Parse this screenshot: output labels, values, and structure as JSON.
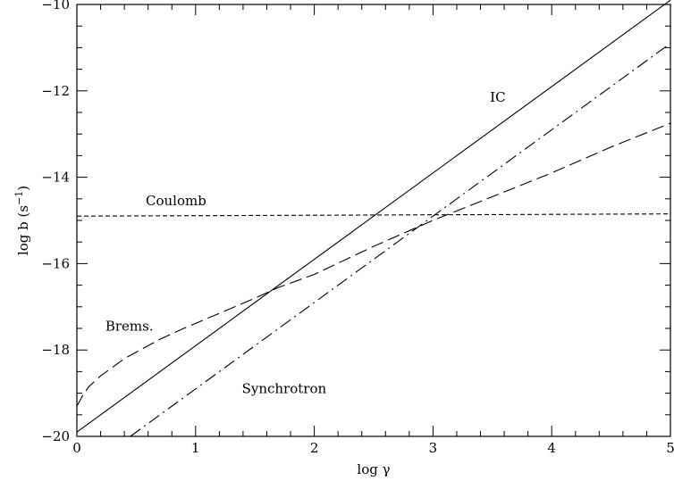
{
  "chart_data": {
    "type": "line",
    "xlabel": "log γ",
    "ylabel_main": "log b (s",
    "ylabel_sup": "−1",
    "ylabel_close": ")",
    "xlim": [
      0,
      5
    ],
    "ylim": [
      -20,
      -10
    ],
    "x_ticks": [
      {
        "value": 0,
        "label": "0"
      },
      {
        "value": 1,
        "label": "1"
      },
      {
        "value": 2,
        "label": "2"
      },
      {
        "value": 3,
        "label": "3"
      },
      {
        "value": 4,
        "label": "4"
      },
      {
        "value": 5,
        "label": "5"
      }
    ],
    "y_ticks": [
      {
        "value": -10,
        "label": "−10"
      },
      {
        "value": -12,
        "label": "−12"
      },
      {
        "value": -14,
        "label": "−14"
      },
      {
        "value": -16,
        "label": "−16"
      },
      {
        "value": -18,
        "label": "−18"
      },
      {
        "value": -20,
        "label": "−20"
      }
    ],
    "series": [
      {
        "name": "IC",
        "dash": "solid",
        "x": [
          0,
          5
        ],
        "y": [
          -19.9,
          -9.9
        ]
      },
      {
        "name": "Synchrotron",
        "dash": "dashdot",
        "x": [
          0.45,
          1.0,
          2.0,
          3.0,
          4.0,
          5.0
        ],
        "y": [
          -20.0,
          -18.9,
          -16.9,
          -14.9,
          -12.9,
          -10.9
        ]
      },
      {
        "name": "Coulomb",
        "dash": "dashed",
        "x": [
          0,
          1,
          2,
          3,
          4,
          5
        ],
        "y": [
          -14.9,
          -14.89,
          -14.88,
          -14.87,
          -14.86,
          -14.85
        ]
      },
      {
        "name": "Brems.",
        "dash": "longdash",
        "x": [
          0,
          0.05,
          0.1,
          0.2,
          0.3,
          0.4,
          0.5,
          0.7,
          0.9,
          1.2,
          1.5,
          1.7,
          2.0,
          2.5,
          3.0,
          3.5,
          4.0,
          4.5,
          5.0
        ],
        "y": [
          -19.3,
          -19.05,
          -18.85,
          -18.6,
          -18.4,
          -18.2,
          -18.05,
          -17.75,
          -17.5,
          -17.15,
          -16.8,
          -16.55,
          -16.25,
          -15.6,
          -15.0,
          -14.45,
          -13.9,
          -13.3,
          -12.75
        ]
      }
    ],
    "annotations": [
      {
        "text": "IC",
        "x": 3.48,
        "y": -12.25
      },
      {
        "text": "Coulomb",
        "x": 0.58,
        "y": -14.65
      },
      {
        "text": "Brems.",
        "x": 0.24,
        "y": -17.55
      },
      {
        "text": "Synchrotron",
        "x": 1.39,
        "y": -19.0
      }
    ],
    "grid": false,
    "colors": {
      "line": "#000000",
      "background": "#ffffff"
    }
  }
}
